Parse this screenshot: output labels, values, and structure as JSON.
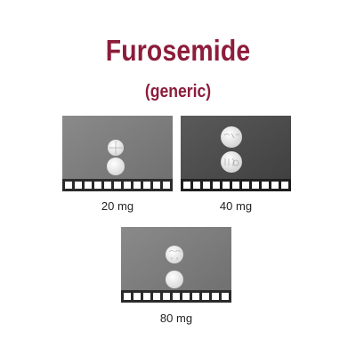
{
  "page": {
    "title": "Furosemide",
    "subtitle": "(generic)",
    "accent_color": "#8c1d3b"
  },
  "photos": [
    {
      "caption": "20 mg",
      "background": "#7c7c7c",
      "tablet_front_imprint": "",
      "tablet_back_imprint": "",
      "tablet_shape": "round",
      "tablet_color": "white"
    },
    {
      "caption": "40 mg",
      "background": "#4e4e4e",
      "tablet_front_imprint": "",
      "tablet_back_imprint": "",
      "tablet_shape": "round",
      "tablet_color": "white"
    },
    {
      "caption": "80 mg",
      "background": "#7c7c7c",
      "tablet_front_imprint": "",
      "tablet_back_imprint": "",
      "tablet_shape": "round",
      "tablet_color": "white"
    }
  ]
}
